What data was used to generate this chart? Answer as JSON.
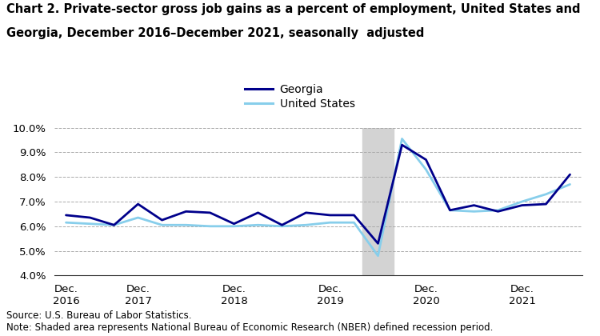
{
  "title_line1": "Chart 2. Private-sector gross job gains as a percent of employment, United States and",
  "title_line2": "Georgia, December 2016–December 2021, seasonally  adjusted",
  "source_note": "Source: U.S. Bureau of Labor Statistics.\nNote: Shaded area represents National Bureau of Economic Research (NBER) defined recession period.",
  "georgia_y": [
    6.45,
    6.35,
    6.05,
    6.9,
    6.25,
    6.6,
    6.55,
    6.1,
    6.55,
    6.05,
    6.55,
    6.45,
    6.45,
    5.3,
    9.3,
    8.7,
    6.65,
    6.85,
    6.6,
    6.85,
    6.9,
    8.1
  ],
  "us_y": [
    6.15,
    6.1,
    6.05,
    6.35,
    6.05,
    6.05,
    6.0,
    6.0,
    6.05,
    6.0,
    6.05,
    6.15,
    6.15,
    4.8,
    9.55,
    8.3,
    6.65,
    6.6,
    6.65,
    7.0,
    7.3,
    7.7
  ],
  "recession_x_start": 12.35,
  "recession_x_end": 13.65,
  "georgia_color": "#00008B",
  "us_color": "#87CEEB",
  "ylim": [
    4.0,
    10.0
  ],
  "yticks": [
    4.0,
    5.0,
    6.0,
    7.0,
    8.0,
    9.0,
    10.0
  ],
  "xtick_positions": [
    0,
    3,
    7,
    11,
    15,
    19
  ],
  "xtick_labels": [
    "Dec.\n2016",
    "Dec.\n2017",
    "Dec.\n2018",
    "Dec.\n2019",
    "Dec.\n2020",
    "Dec.\n2021"
  ],
  "recession_color": "#d3d3d3",
  "background_color": "#ffffff",
  "legend_georgia": "Georgia",
  "legend_us": "United States",
  "title_fontsize": 10.5,
  "tick_fontsize": 9.5,
  "legend_fontsize": 10,
  "note_fontsize": 8.5,
  "xlim": [
    -0.5,
    21.5
  ]
}
